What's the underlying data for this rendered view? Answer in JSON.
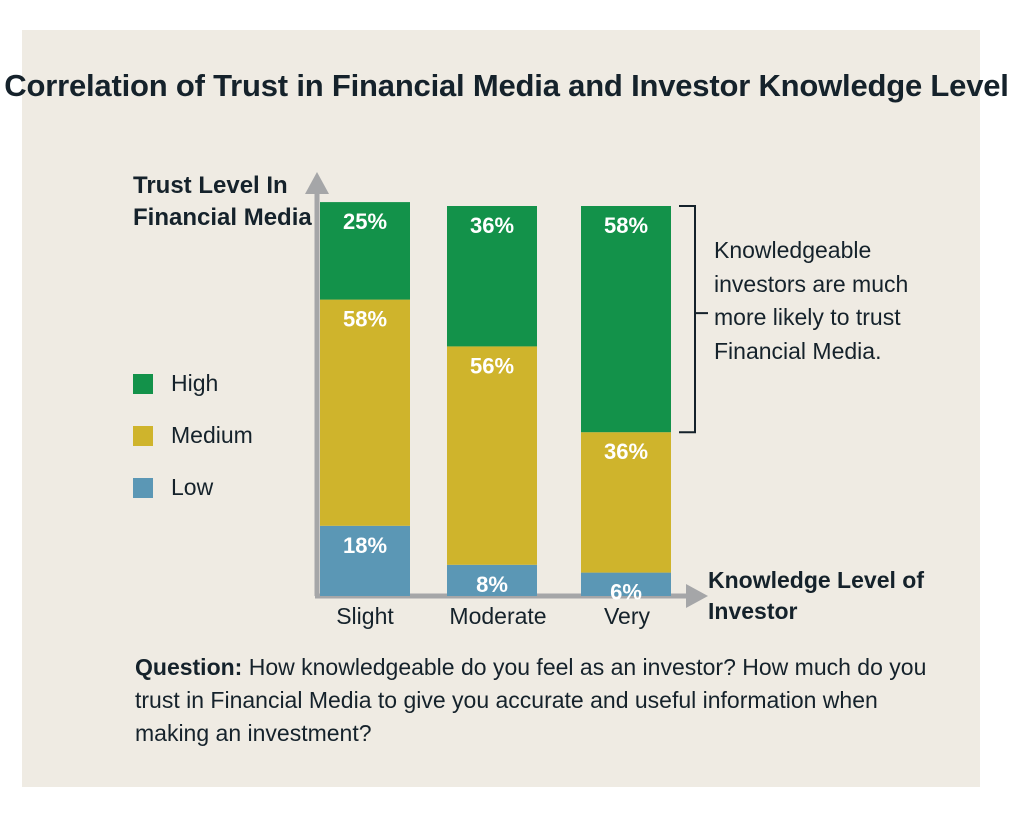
{
  "chart_data": {
    "type": "bar",
    "stacked": true,
    "title": "Correlation of Trust in Financial Media and Investor Knowledge Level",
    "ylabel": "Trust Level In Financial Media",
    "xlabel": "Knowledge Level of Investor",
    "categories": [
      "Slight",
      "Moderate",
      "Very"
    ],
    "series": [
      {
        "name": "Low",
        "values": [
          18,
          8,
          6
        ],
        "labels": [
          "18%",
          "8%",
          "6%"
        ],
        "color": "#5b97b5"
      },
      {
        "name": "Medium",
        "values": [
          58,
          56,
          36
        ],
        "labels": [
          "58%",
          "56%",
          "36%"
        ],
        "color": "#cfb42c"
      },
      {
        "name": "High",
        "values": [
          25,
          36,
          58
        ],
        "labels": [
          "25%",
          "36%",
          "58%"
        ],
        "color": "#13924a"
      }
    ],
    "legend": {
      "placement": "left",
      "items": [
        {
          "label": "High",
          "color": "#13924a"
        },
        {
          "label": "Medium",
          "color": "#cfb42c"
        },
        {
          "label": "Low",
          "color": "#5b97b5"
        }
      ]
    },
    "annotation": "Knowledgeable investors are much more likely to trust Financial Media.",
    "grid": false
  },
  "question": {
    "lead": "Question:",
    "text": " How knowledgeable do you feel as an investor? How much do you trust in Financial Media to give you accurate and useful information when making an investment?"
  },
  "colors": {
    "background": "#efebe3",
    "text": "#15222b",
    "axis": "#a5a6a8"
  }
}
